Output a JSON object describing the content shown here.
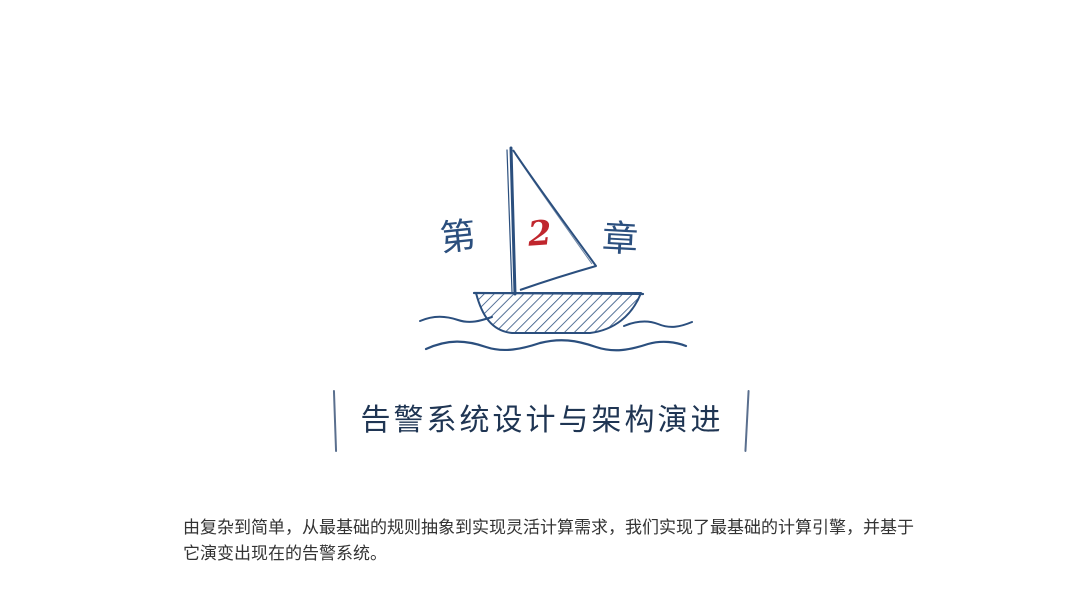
{
  "chapter": {
    "prefix": "第",
    "number": "2",
    "suffix": "章",
    "title": "告警系统设计与架构演进"
  },
  "summary": "由复杂到简单，从最基础的规则抽象到实现灵活计算需求，我们实现了最基础的计算引擎，并基于它演变出现在的告警系统。",
  "colors": {
    "ink": "#2b4f7e",
    "accent": "#c0262d",
    "text": "#333333",
    "background": "#ffffff"
  },
  "icons": {
    "illustration": "sailboat-icon"
  }
}
